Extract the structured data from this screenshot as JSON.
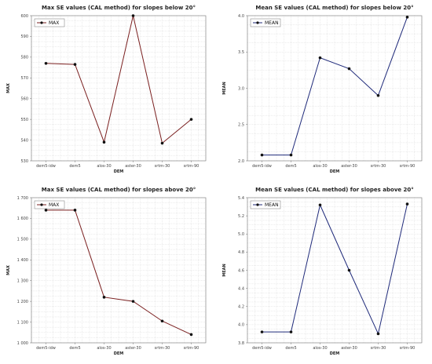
{
  "chart_data": [
    {
      "type": "line",
      "title": "Max SE values (CAL method) for slopes below 20°",
      "xlabel": "DEM",
      "ylabel": "MAX",
      "categories": [
        "dem5-idw",
        "dem5",
        "alos-30",
        "aster-30",
        "srtm-30",
        "srtm-90"
      ],
      "ylim": [
        530,
        600
      ],
      "yticks": [
        530,
        540,
        550,
        560,
        570,
        580,
        590,
        600
      ],
      "ytick_labels": [
        "530",
        "540",
        "550",
        "560",
        "570",
        "580",
        "590",
        "600"
      ],
      "series": [
        {
          "name": "MAX",
          "values": [
            577,
            576.5,
            539,
            600,
            538.5,
            550
          ]
        }
      ],
      "color": "#7a1f1f",
      "legend": "top-left",
      "grid": true
    },
    {
      "type": "line",
      "title": "Mean SE values (CAL method) for slopes below 20°",
      "xlabel": "DEM",
      "ylabel": "MEAN",
      "categories": [
        "dem5-idw",
        "dem5",
        "alos-30",
        "aster-30",
        "srtm-30",
        "srtm-90"
      ],
      "ylim": [
        2.0,
        4.0
      ],
      "yticks": [
        2.0,
        2.5,
        3.0,
        3.5,
        4.0
      ],
      "ytick_labels": [
        "2.0",
        "2.5",
        "3.0",
        "3.5",
        "4.0"
      ],
      "series": [
        {
          "name": "MEAN",
          "values": [
            2.08,
            2.08,
            3.42,
            3.27,
            2.9,
            3.98
          ]
        }
      ],
      "color": "#1f2a7a",
      "legend": "top-left",
      "grid": true
    },
    {
      "type": "line",
      "title": "Max SE values (CAL method) for slopes above 20°",
      "xlabel": "DEM",
      "ylabel": "MAX",
      "categories": [
        "dem5-idw",
        "dem5",
        "alos-30",
        "aster-30",
        "srtm-30",
        "srtm-90"
      ],
      "ylim": [
        1000,
        1700
      ],
      "yticks": [
        1000,
        1100,
        1200,
        1300,
        1400,
        1500,
        1600,
        1700
      ],
      "ytick_labels": [
        "1 000",
        "1 100",
        "1 200",
        "1 300",
        "1 400",
        "1 500",
        "1 600",
        "1 700"
      ],
      "series": [
        {
          "name": "MAX",
          "values": [
            1640,
            1640,
            1220,
            1200,
            1105,
            1040
          ]
        }
      ],
      "color": "#7a1f1f",
      "legend": "top-left",
      "grid": true
    },
    {
      "type": "line",
      "title": "Mean SE values (CAL method) for slopes above 20°",
      "xlabel": "DEM",
      "ylabel": "MEAN",
      "categories": [
        "dem5-idw",
        "dem5",
        "alos-30",
        "aster-30",
        "srtm-30",
        "srtm-90"
      ],
      "ylim": [
        3.8,
        5.4
      ],
      "yticks": [
        3.8,
        4.0,
        4.2,
        4.4,
        4.6,
        4.8,
        5.0,
        5.2,
        5.4
      ],
      "ytick_labels": [
        "3.8",
        "4.0",
        "4.2",
        "4.4",
        "4.6",
        "4.8",
        "5.0",
        "5.2",
        "5.4"
      ],
      "series": [
        {
          "name": "MEAN",
          "values": [
            3.92,
            3.92,
            5.32,
            4.6,
            3.9,
            5.33
          ]
        }
      ],
      "color": "#1f2a7a",
      "legend": "top-left",
      "grid": true
    }
  ]
}
